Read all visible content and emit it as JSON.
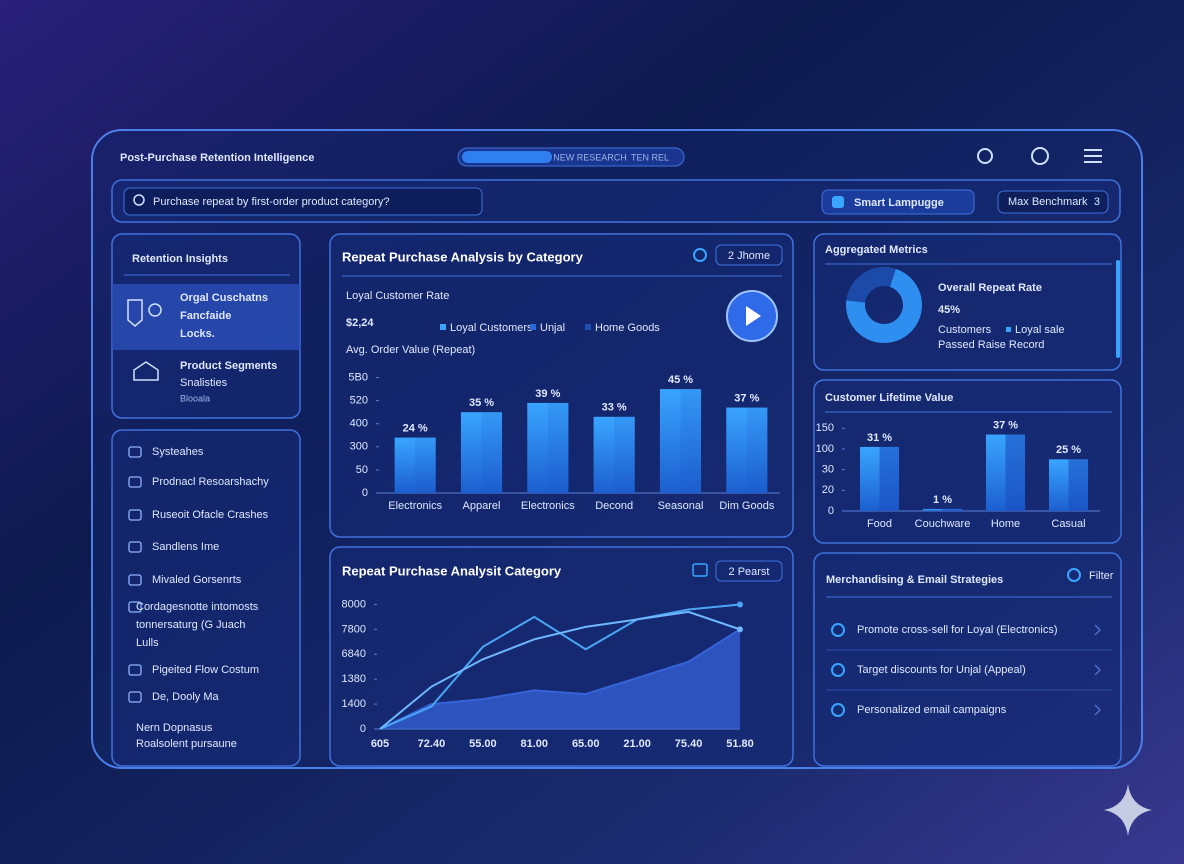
{
  "header": {
    "title": "Post-Purchase Retention Intelligence",
    "tabs": [
      "NEW RESEARCH",
      "TEN REL"
    ]
  },
  "search": {
    "query": "Purchase repeat by first-order product category?",
    "button": "Smart Lampugge",
    "selector": "Max Benchmark",
    "selector_count": "3"
  },
  "sidebar": {
    "title": "Retention Insights",
    "insights": [
      {
        "lines": [
          "Orgal Cuschatns",
          "Fancfaide",
          "Locks."
        ]
      },
      {
        "lines": [
          "Product Segments",
          "Snalisties",
          "Blooala"
        ]
      }
    ],
    "nav": [
      "Systeahes",
      "Prodnacl Resoarshachy",
      "Ruseoit Ofacle Crashes",
      "Sandlens Ime",
      "Mivaled Gorsenrts",
      "Cordagesnotte intomosts",
      "tonnersaturg (G Juach",
      "Lulls",
      "Pigeited Flow Costum",
      "De, Dooly Ma",
      "Nern Dopnasus",
      "Roalsolent pursaune"
    ]
  },
  "strategies": {
    "title": "Merchandising & Email Strategies",
    "filter": "Filter",
    "items": [
      "Promote cross-sell for Loyal (Electronics)",
      "Target discounts for Unjal (Appeal)",
      "Personalized email campaigns"
    ]
  },
  "chart_data": [
    {
      "type": "bar",
      "title": "Repeat Purchase Analysis by Category",
      "button": "2 Jhome",
      "kpi_label": "Loyal Customer Rate",
      "kpi": "$2,24",
      "kpi_sub": "Avg. Order Value (Repeat)",
      "legend": [
        "Loyal Customers",
        "Unjal",
        "Home Goods"
      ],
      "categories": [
        "Electronics",
        "Apparel",
        "Electronics",
        "Decond",
        "Seasonal",
        "Dim Goods"
      ],
      "values": [
        24,
        35,
        39,
        33,
        45,
        37
      ],
      "value_labels": [
        "24 %",
        "35 %",
        "39 %",
        "33 %",
        "45 %",
        "37 %"
      ],
      "color": "#2f8cf0",
      "ylim": [
        0,
        55
      ],
      "yticks": [
        0,
        {
          "value": 10,
          "label": "50"
        },
        {
          "value": 20,
          "label": "300"
        },
        {
          "value": 30,
          "label": "400"
        },
        {
          "value": 40,
          "label": "520"
        },
        {
          "value": 50,
          "label": "5B0"
        }
      ]
    },
    {
      "type": "bar",
      "title": "Customer Lifetime Value",
      "categories": [
        "Food",
        "Couchware",
        "Home",
        "Casual"
      ],
      "values": [
        31,
        1,
        37,
        25
      ],
      "value_labels": [
        "31 %",
        "1 %",
        "37 %",
        "25 %"
      ],
      "color": "#2f8cf0",
      "ylim": [
        0,
        45
      ],
      "yticks": [
        0,
        {
          "value": 10,
          "label": "20"
        },
        {
          "value": 20,
          "label": "30"
        },
        {
          "value": 30,
          "label": "100"
        },
        {
          "value": 40,
          "label": "150"
        }
      ]
    },
    {
      "type": "line",
      "title": "Repeat Purchase Analysit Category",
      "button": "2 Pearst",
      "categories": [
        "605",
        "72.40",
        "55.00",
        "81.00",
        "65.00",
        "21.00",
        "75.40",
        "51.80"
      ],
      "series": [
        {
          "color": "#3563d8",
          "fill": true,
          "values": [
            0,
            1.0,
            1.2,
            1.55,
            1.4,
            2.05,
            2.7,
            4.0
          ]
        },
        {
          "color": "#4aa6f5",
          "values": [
            0,
            0.9,
            3.3,
            4.5,
            3.2,
            4.4,
            4.8,
            5.0
          ]
        },
        {
          "color": "#6fb8ff",
          "values": [
            0,
            1.7,
            2.8,
            3.6,
            4.1,
            4.4,
            4.7,
            4.0
          ]
        }
      ],
      "ylim": [
        0,
        5.3
      ],
      "yticks": [
        0,
        {
          "value": 1,
          "label": "1400"
        },
        {
          "value": 2,
          "label": "1380"
        },
        {
          "value": 3,
          "label": "6840"
        },
        {
          "value": 4,
          "label": "7800"
        },
        {
          "value": 5,
          "label": "8000"
        }
      ]
    },
    {
      "type": "pie",
      "title": "Aggregated Metrics",
      "metric_title": "Overall Repeat Rate",
      "metric": "45%",
      "legend": [
        "Customers",
        "Loyal sale"
      ],
      "note": "Passed Raise Record",
      "values": [
        72,
        28
      ],
      "colors": [
        "#2e8ff0",
        "#1c4aa8"
      ]
    }
  ]
}
